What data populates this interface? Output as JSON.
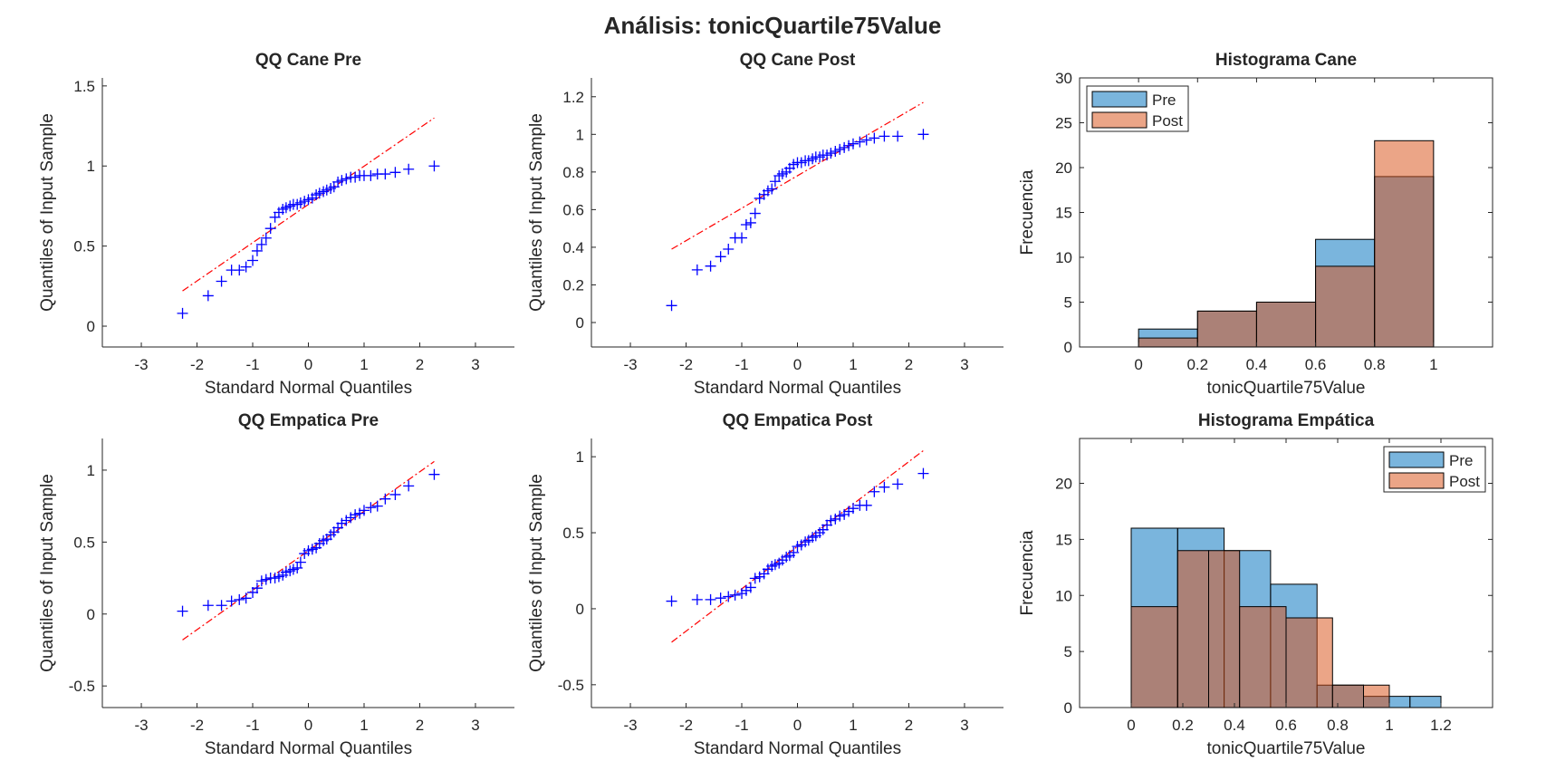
{
  "figure": {
    "title": "Análisis: tonicQuartile75Value"
  },
  "colors": {
    "qq_marker": "#0000ff",
    "qq_line": "#ff0000",
    "pre": "#0072BD",
    "post": "#D95319",
    "axis": "#262626"
  },
  "chart_data": [
    {
      "type": "scatter",
      "subtype": "qq",
      "title": "QQ Cane Pre",
      "xlabel": "Standard Normal Quantiles",
      "ylabel": "Quantiles of Input Sample",
      "xlim": [
        -3.7,
        3.7
      ],
      "ylim": [
        -0.13,
        1.55
      ],
      "xticks": [
        -3,
        -2,
        -1,
        0,
        1,
        2,
        3
      ],
      "yticks": [
        0,
        0.5,
        1,
        1.5
      ],
      "ytick_labels": [
        "0",
        "0.5",
        "1",
        "1.5"
      ],
      "reference_line": {
        "x": [
          -2.26,
          2.26
        ],
        "y": [
          0.22,
          1.3
        ]
      },
      "points": [
        [
          -2.26,
          0.08
        ],
        [
          -1.8,
          0.19
        ],
        [
          -1.56,
          0.28
        ],
        [
          -1.38,
          0.35
        ],
        [
          -1.24,
          0.35
        ],
        [
          -1.12,
          0.37
        ],
        [
          -1.0,
          0.41
        ],
        [
          -0.92,
          0.47
        ],
        [
          -0.84,
          0.51
        ],
        [
          -0.76,
          0.55
        ],
        [
          -0.68,
          0.61
        ],
        [
          -0.6,
          0.68
        ],
        [
          -0.53,
          0.71
        ],
        [
          -0.46,
          0.73
        ],
        [
          -0.4,
          0.74
        ],
        [
          -0.33,
          0.75
        ],
        [
          -0.27,
          0.76
        ],
        [
          -0.2,
          0.76
        ],
        [
          -0.14,
          0.77
        ],
        [
          -0.07,
          0.78
        ],
        [
          0.0,
          0.79
        ],
        [
          0.07,
          0.8
        ],
        [
          0.14,
          0.82
        ],
        [
          0.2,
          0.83
        ],
        [
          0.27,
          0.84
        ],
        [
          0.33,
          0.85
        ],
        [
          0.4,
          0.86
        ],
        [
          0.46,
          0.87
        ],
        [
          0.53,
          0.9
        ],
        [
          0.6,
          0.91
        ],
        [
          0.68,
          0.92
        ],
        [
          0.76,
          0.93
        ],
        [
          0.84,
          0.93
        ],
        [
          0.92,
          0.94
        ],
        [
          1.0,
          0.94
        ],
        [
          1.12,
          0.94
        ],
        [
          1.24,
          0.95
        ],
        [
          1.38,
          0.95
        ],
        [
          1.56,
          0.96
        ],
        [
          1.8,
          0.98
        ],
        [
          2.26,
          1.0
        ]
      ]
    },
    {
      "type": "scatter",
      "subtype": "qq",
      "title": "QQ Cane Post",
      "xlabel": "Standard Normal Quantiles",
      "ylabel": "Quantiles of Input Sample",
      "xlim": [
        -3.7,
        3.7
      ],
      "ylim": [
        -0.13,
        1.3
      ],
      "xticks": [
        -3,
        -2,
        -1,
        0,
        1,
        2,
        3
      ],
      "yticks": [
        0,
        0.2,
        0.4,
        0.6,
        0.8,
        1,
        1.2
      ],
      "ytick_labels": [
        "0",
        "0.2",
        "0.4",
        "0.6",
        "0.8",
        "1",
        "1.2"
      ],
      "reference_line": {
        "x": [
          -2.26,
          2.26
        ],
        "y": [
          0.39,
          1.17
        ]
      },
      "points": [
        [
          -2.26,
          0.09
        ],
        [
          -1.8,
          0.28
        ],
        [
          -1.56,
          0.3
        ],
        [
          -1.38,
          0.35
        ],
        [
          -1.24,
          0.39
        ],
        [
          -1.12,
          0.45
        ],
        [
          -1.0,
          0.45
        ],
        [
          -0.92,
          0.52
        ],
        [
          -0.84,
          0.53
        ],
        [
          -0.76,
          0.58
        ],
        [
          -0.68,
          0.66
        ],
        [
          -0.6,
          0.68
        ],
        [
          -0.53,
          0.7
        ],
        [
          -0.46,
          0.71
        ],
        [
          -0.4,
          0.75
        ],
        [
          -0.33,
          0.78
        ],
        [
          -0.27,
          0.79
        ],
        [
          -0.2,
          0.8
        ],
        [
          -0.14,
          0.82
        ],
        [
          -0.07,
          0.84
        ],
        [
          0.0,
          0.85
        ],
        [
          0.07,
          0.85
        ],
        [
          0.14,
          0.86
        ],
        [
          0.2,
          0.86
        ],
        [
          0.27,
          0.87
        ],
        [
          0.33,
          0.88
        ],
        [
          0.4,
          0.88
        ],
        [
          0.46,
          0.89
        ],
        [
          0.53,
          0.89
        ],
        [
          0.6,
          0.9
        ],
        [
          0.68,
          0.91
        ],
        [
          0.76,
          0.92
        ],
        [
          0.84,
          0.93
        ],
        [
          0.92,
          0.94
        ],
        [
          1.0,
          0.95
        ],
        [
          1.12,
          0.96
        ],
        [
          1.24,
          0.97
        ],
        [
          1.38,
          0.98
        ],
        [
          1.56,
          0.99
        ],
        [
          1.8,
          0.99
        ],
        [
          2.26,
          1.0
        ]
      ]
    },
    {
      "type": "histogram",
      "title": "Histograma Cane",
      "xlabel": "tonicQuartile75Value",
      "ylabel": "Frecuencia",
      "xlim": [
        -0.2,
        1.2
      ],
      "ylim": [
        0,
        30
      ],
      "xticks": [
        0,
        0.2,
        0.4,
        0.6,
        0.8,
        1
      ],
      "yticks": [
        0,
        5,
        10,
        15,
        20,
        25,
        30
      ],
      "legend": {
        "position": "top-left"
      },
      "series": [
        {
          "name": "Pre",
          "edges": [
            0,
            0.2,
            0.4,
            0.6,
            0.8,
            1.0
          ],
          "values": [
            2,
            4,
            5,
            12,
            19
          ]
        },
        {
          "name": "Post",
          "edges": [
            0,
            0.2,
            0.4,
            0.6,
            0.8,
            1.0
          ],
          "values": [
            1,
            4,
            5,
            9,
            23
          ]
        }
      ]
    },
    {
      "type": "scatter",
      "subtype": "qq",
      "title": "QQ Empatica Pre",
      "xlabel": "Standard Normal Quantiles",
      "ylabel": "Quantiles of Input Sample",
      "xlim": [
        -3.7,
        3.7
      ],
      "ylim": [
        -0.65,
        1.22
      ],
      "xticks": [
        -3,
        -2,
        -1,
        0,
        1,
        2,
        3
      ],
      "yticks": [
        -0.5,
        0,
        0.5,
        1
      ],
      "ytick_labels": [
        "-0.5",
        "0",
        "0.5",
        "1"
      ],
      "reference_line": {
        "x": [
          -2.26,
          2.26
        ],
        "y": [
          -0.18,
          1.06
        ]
      },
      "points": [
        [
          -2.26,
          0.02
        ],
        [
          -1.8,
          0.06
        ],
        [
          -1.56,
          0.06
        ],
        [
          -1.38,
          0.09
        ],
        [
          -1.24,
          0.1
        ],
        [
          -1.12,
          0.11
        ],
        [
          -1.0,
          0.15
        ],
        [
          -0.92,
          0.18
        ],
        [
          -0.84,
          0.23
        ],
        [
          -0.76,
          0.24
        ],
        [
          -0.68,
          0.25
        ],
        [
          -0.6,
          0.25
        ],
        [
          -0.53,
          0.26
        ],
        [
          -0.46,
          0.27
        ],
        [
          -0.4,
          0.29
        ],
        [
          -0.33,
          0.3
        ],
        [
          -0.27,
          0.31
        ],
        [
          -0.2,
          0.32
        ],
        [
          -0.14,
          0.36
        ],
        [
          -0.07,
          0.42
        ],
        [
          0.0,
          0.44
        ],
        [
          0.07,
          0.45
        ],
        [
          0.14,
          0.46
        ],
        [
          0.2,
          0.49
        ],
        [
          0.27,
          0.51
        ],
        [
          0.33,
          0.52
        ],
        [
          0.4,
          0.55
        ],
        [
          0.46,
          0.57
        ],
        [
          0.53,
          0.6
        ],
        [
          0.6,
          0.63
        ],
        [
          0.68,
          0.65
        ],
        [
          0.76,
          0.67
        ],
        [
          0.84,
          0.69
        ],
        [
          0.92,
          0.7
        ],
        [
          1.0,
          0.72
        ],
        [
          1.12,
          0.74
        ],
        [
          1.24,
          0.75
        ],
        [
          1.38,
          0.8
        ],
        [
          1.56,
          0.83
        ],
        [
          1.8,
          0.89
        ],
        [
          2.26,
          0.97
        ]
      ]
    },
    {
      "type": "scatter",
      "subtype": "qq",
      "title": "QQ Empatica Post",
      "xlabel": "Standard Normal Quantiles",
      "ylabel": "Quantiles of Input Sample",
      "xlim": [
        -3.7,
        3.7
      ],
      "ylim": [
        -0.65,
        1.12
      ],
      "xticks": [
        -3,
        -2,
        -1,
        0,
        1,
        2,
        3
      ],
      "yticks": [
        -0.5,
        0,
        0.5,
        1
      ],
      "ytick_labels": [
        "-0.5",
        "0",
        "0.5",
        "1"
      ],
      "reference_line": {
        "x": [
          -2.26,
          2.26
        ],
        "y": [
          -0.22,
          1.04
        ]
      },
      "points": [
        [
          -2.26,
          0.05
        ],
        [
          -1.8,
          0.06
        ],
        [
          -1.56,
          0.06
        ],
        [
          -1.38,
          0.07
        ],
        [
          -1.24,
          0.08
        ],
        [
          -1.12,
          0.09
        ],
        [
          -1.0,
          0.1
        ],
        [
          -0.92,
          0.12
        ],
        [
          -0.84,
          0.14
        ],
        [
          -0.76,
          0.2
        ],
        [
          -0.68,
          0.21
        ],
        [
          -0.6,
          0.23
        ],
        [
          -0.53,
          0.26
        ],
        [
          -0.46,
          0.28
        ],
        [
          -0.4,
          0.29
        ],
        [
          -0.33,
          0.3
        ],
        [
          -0.27,
          0.32
        ],
        [
          -0.2,
          0.34
        ],
        [
          -0.14,
          0.35
        ],
        [
          -0.07,
          0.37
        ],
        [
          0.0,
          0.41
        ],
        [
          0.07,
          0.42
        ],
        [
          0.14,
          0.44
        ],
        [
          0.2,
          0.45
        ],
        [
          0.27,
          0.47
        ],
        [
          0.33,
          0.48
        ],
        [
          0.4,
          0.5
        ],
        [
          0.46,
          0.52
        ],
        [
          0.53,
          0.55
        ],
        [
          0.6,
          0.58
        ],
        [
          0.68,
          0.59
        ],
        [
          0.76,
          0.61
        ],
        [
          0.84,
          0.62
        ],
        [
          0.92,
          0.64
        ],
        [
          1.0,
          0.66
        ],
        [
          1.12,
          0.68
        ],
        [
          1.24,
          0.68
        ],
        [
          1.38,
          0.77
        ],
        [
          1.56,
          0.8
        ],
        [
          1.8,
          0.82
        ],
        [
          2.26,
          0.89
        ]
      ]
    },
    {
      "type": "histogram",
      "title": "Histograma Empática",
      "xlabel": "tonicQuartile75Value",
      "ylabel": "Frecuencia",
      "xlim": [
        -0.2,
        1.4
      ],
      "ylim": [
        0,
        24
      ],
      "xticks": [
        0,
        0.2,
        0.4,
        0.6,
        0.8,
        1,
        1.2
      ],
      "yticks": [
        0,
        5,
        10,
        15,
        20
      ],
      "legend": {
        "position": "top-right"
      },
      "series": [
        {
          "name": "Pre",
          "edges": [
            0,
            0.18,
            0.36,
            0.54,
            0.72,
            0.9,
            1.08,
            1.2
          ],
          "values": [
            16,
            16,
            14,
            11,
            2,
            1,
            1
          ]
        },
        {
          "name": "Post",
          "edges": [
            0,
            0.18,
            0.3,
            0.42,
            0.6,
            0.78,
            0.9,
            1.0
          ],
          "values": [
            9,
            14,
            14,
            9,
            8,
            2,
            2
          ]
        }
      ]
    }
  ]
}
